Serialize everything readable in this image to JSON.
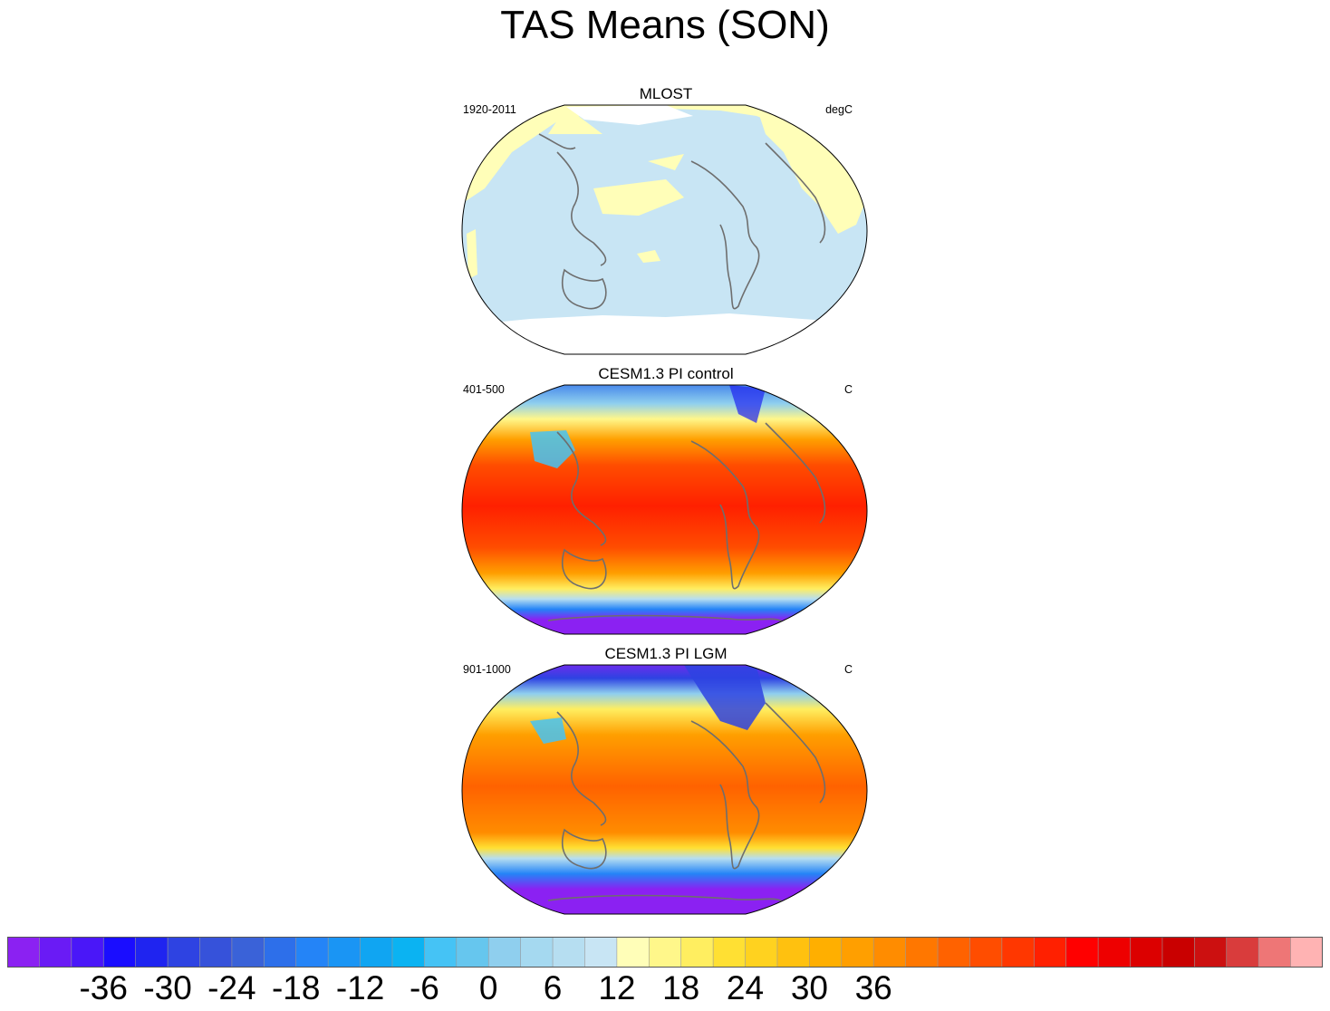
{
  "title": "TAS Means (SON)",
  "panels": [
    {
      "title": "MLOST",
      "left_text": "1920-2011",
      "right_text": "degC",
      "style": "obs"
    },
    {
      "title": "CESM1.3 PI control",
      "left_text": "401-500",
      "right_text": "C",
      "style": "pi"
    },
    {
      "title": "CESM1.3 PI LGM",
      "left_text": "901-1000",
      "right_text": "C",
      "style": "lgm"
    }
  ],
  "colorbar": {
    "colors": [
      "#8B21F2",
      "#6A1BF5",
      "#4A17F8",
      "#1A0DFF",
      "#1F24F0",
      "#2E43E2",
      "#3652DA",
      "#3A62D8",
      "#2D6FEA",
      "#2484F7",
      "#1A95F4",
      "#10A5F2",
      "#0BB3F2",
      "#45C3F5",
      "#66C6EE",
      "#8FCFEE",
      "#A5D9F0",
      "#B6DEF1",
      "#C8E5F4",
      "#FFFEB8",
      "#FFF78A",
      "#FFEE60",
      "#FFE033",
      "#FFD21F",
      "#FFC10F",
      "#FFAF00",
      "#FF9F00",
      "#FF8C00",
      "#FF7700",
      "#FF6200",
      "#FF4D00",
      "#FF3700",
      "#FF2000",
      "#FF0000",
      "#EE0000",
      "#DC0000",
      "#C90000",
      "#CC1010",
      "#D93C3C",
      "#EE7676",
      "#FFB3B3"
    ],
    "tick_labels": [
      "-36",
      "-30",
      "-24",
      "-18",
      "-12",
      "-6",
      "0",
      "6",
      "12",
      "18",
      "24",
      "30",
      "36"
    ]
  }
}
